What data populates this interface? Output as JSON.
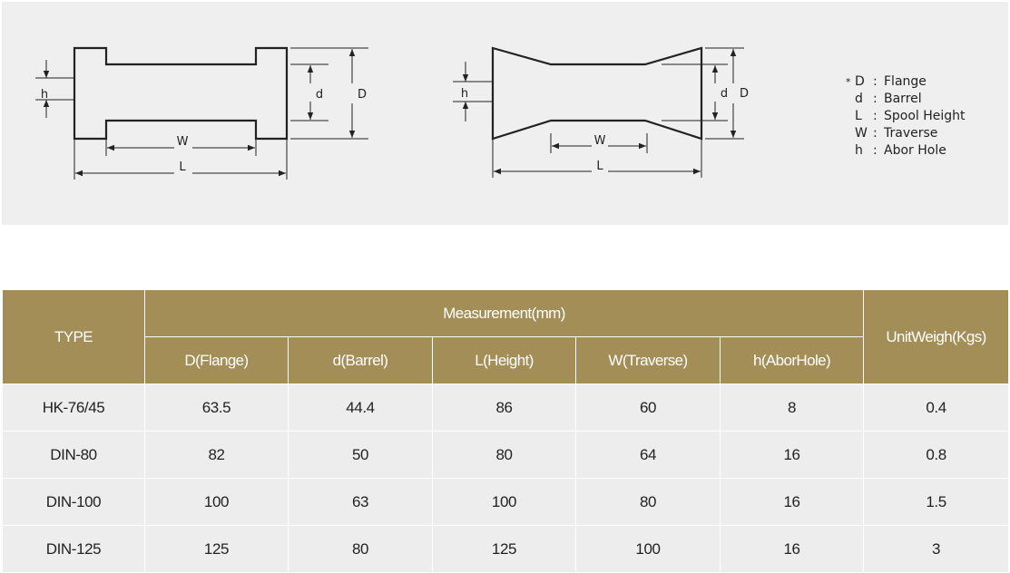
{
  "diagram": {
    "left_labels": {
      "h": "h",
      "d": "d",
      "D": "D",
      "W": "W",
      "L": "L"
    },
    "right_labels": {
      "h": "h",
      "d": "d",
      "D": "D",
      "W": "W",
      "L": "L"
    }
  },
  "legend": {
    "marker": "*",
    "items": [
      {
        "symbol": "D",
        "label": "Flange"
      },
      {
        "symbol": "d",
        "label": "Barrel"
      },
      {
        "symbol": "L",
        "label": "Spool Height"
      },
      {
        "symbol": "W",
        "label": "Traverse"
      },
      {
        "symbol": "h",
        "label": "Abor Hole"
      }
    ]
  },
  "table": {
    "type_header": "TYPE",
    "measurement_header": "Measurement(mm)",
    "weight_header": "UnitWeigh(Kgs)",
    "sub_headers": [
      "D(Flange)",
      "d(Barrel)",
      "L(Height)",
      "W(Traverse)",
      "h(AborHole)"
    ],
    "rows": [
      {
        "type": "HK-76/45",
        "D": "63.5",
        "d": "44.4",
        "L": "86",
        "W": "60",
        "h": "8",
        "weight": "0.4"
      },
      {
        "type": "DIN-80",
        "D": "82",
        "d": "50",
        "L": "80",
        "W": "64",
        "h": "16",
        "weight": "0.8"
      },
      {
        "type": "DIN-100",
        "D": "100",
        "d": "63",
        "L": "100",
        "W": "80",
        "h": "16",
        "weight": "1.5"
      },
      {
        "type": "DIN-125",
        "D": "125",
        "d": "80",
        "L": "125",
        "W": "100",
        "h": "16",
        "weight": "3"
      }
    ]
  }
}
